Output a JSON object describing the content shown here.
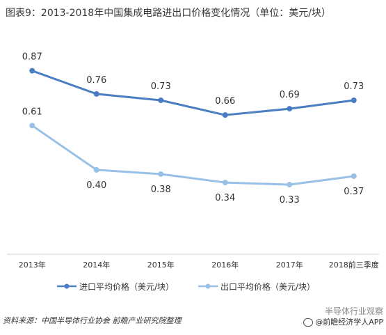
{
  "title": "图表9：2013-2018年中国集成电路进出口价格变化情况（单位：美元/块）",
  "source": "资料来源：中国半导体行业协会 前瞻产业研究院整理",
  "watermark_line1": "半导体行业观察",
  "watermark_line2": "@前瞻经济学人APP",
  "colors": {
    "import": "#4a7ec2",
    "export": "#99c0e6",
    "axis": "#d0d0d0"
  },
  "chart_data": {
    "type": "line",
    "title": "图表9：2013-2018年中国集成电路进出口价格变化情况（单位：美元/块）",
    "categories": [
      "2013年",
      "2014年",
      "2015年",
      "2016年",
      "2017年",
      "2018前三季度"
    ],
    "series": [
      {
        "name": "进口平均价格（美元/块）",
        "values": [
          0.87,
          0.76,
          0.73,
          0.66,
          0.69,
          0.73
        ]
      },
      {
        "name": "出口平均价格（美元/块）",
        "values": [
          0.61,
          0.4,
          0.38,
          0.34,
          0.33,
          0.37
        ]
      }
    ],
    "value_labels": [
      [
        "0.87",
        "0.76",
        "0.73",
        "0.66",
        "0.69",
        "0.73"
      ],
      [
        "0.61",
        "0.40",
        "0.38",
        "0.34",
        "0.33",
        "0.37"
      ]
    ],
    "ylim": [
      0,
      1.09
    ],
    "grid": false,
    "legend": "bottom"
  }
}
